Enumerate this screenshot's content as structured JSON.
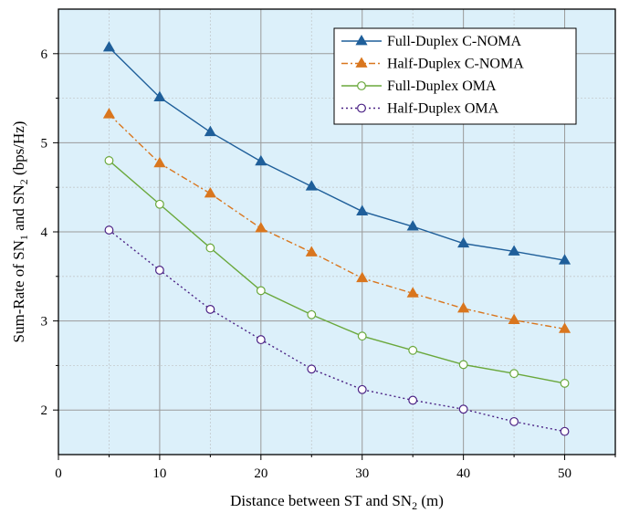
{
  "chart_data": {
    "type": "line",
    "title": "",
    "xlabel": {
      "main": "Distance between ST and SN",
      "sub": "2",
      "tail": " (m)"
    },
    "ylabel": {
      "p1": "Sum-Rate of SN",
      "s1": "1",
      "p2": " and SN",
      "s2": "2",
      "p3": " (bps/Hz)"
    },
    "xlim": [
      0,
      55
    ],
    "ylim": [
      1.5,
      6.5
    ],
    "xticks": [
      0,
      10,
      20,
      30,
      40,
      50
    ],
    "yticks": [
      2,
      3,
      4,
      5,
      6
    ],
    "xtick_labels": [
      "0",
      "10",
      "20",
      "30",
      "40",
      "50"
    ],
    "ytick_labels": [
      "2",
      "3",
      "4",
      "5",
      "6"
    ],
    "grid": true,
    "legend_position": "top-right",
    "background_color": "#dcf0fa",
    "x": [
      5,
      10,
      15,
      20,
      25,
      30,
      35,
      40,
      45,
      50
    ],
    "series": [
      {
        "name": "Full-Duplex C-NOMA",
        "color": "#1f5f9a",
        "dash": "solid",
        "marker": "triangle",
        "filled": true,
        "values": [
          6.07,
          5.51,
          5.12,
          4.79,
          4.51,
          4.23,
          4.06,
          3.87,
          3.78,
          3.68
        ]
      },
      {
        "name": "Half-Duplex C-NOMA",
        "color": "#d9761e",
        "dash": "dashdot",
        "marker": "triangle",
        "filled": true,
        "values": [
          5.32,
          4.77,
          4.43,
          4.04,
          3.77,
          3.48,
          3.31,
          3.14,
          3.01,
          2.91
        ]
      },
      {
        "name": "Full-Duplex OMA",
        "color": "#6aa83c",
        "dash": "solid",
        "marker": "circle",
        "filled": false,
        "values": [
          4.8,
          4.31,
          3.82,
          3.34,
          3.07,
          2.83,
          2.67,
          2.51,
          2.41,
          2.3
        ]
      },
      {
        "name": "Half-Duplex OMA",
        "color": "#4b2285",
        "dash": "dot",
        "marker": "circle",
        "filled": false,
        "values": [
          4.02,
          3.57,
          3.13,
          2.79,
          2.46,
          2.23,
          2.11,
          2.01,
          1.87,
          1.76
        ]
      }
    ]
  }
}
